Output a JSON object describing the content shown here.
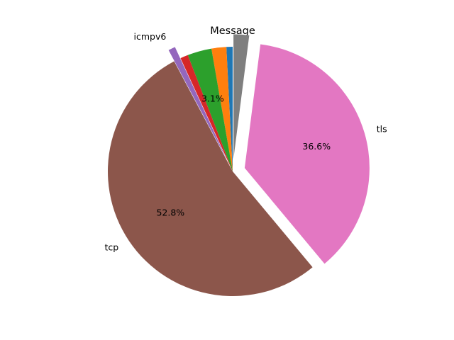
{
  "chart_data": {
    "type": "pie",
    "title": "Message",
    "start_angle_deg": 90,
    "counterclockwise": true,
    "slices": [
      {
        "label": "",
        "value": 0.8,
        "color": "#1f77b4",
        "explode": 0,
        "pct_text": ""
      },
      {
        "label": "",
        "value": 1.9,
        "color": "#ff7f0e",
        "explode": 0,
        "pct_text": ""
      },
      {
        "label": "",
        "value": 3.1,
        "color": "#2ca02c",
        "explode": 0,
        "pct_text": "3.1%"
      },
      {
        "label": "",
        "value": 1.0,
        "color": "#d62728",
        "explode": 0,
        "pct_text": ""
      },
      {
        "label": "icmpv6",
        "value": 0.9,
        "color": "#9467bd",
        "explode": 0.1,
        "pct_text": ""
      },
      {
        "label": "tcp",
        "value": 52.8,
        "color": "#8c564b",
        "explode": 0,
        "pct_text": "52.8%"
      },
      {
        "label": "tls",
        "value": 36.6,
        "color": "#e377c2",
        "explode": 0.1,
        "pct_text": "36.6%"
      },
      {
        "label": "",
        "value": 2.0,
        "color": "#7f7f7f",
        "explode": 0.1,
        "pct_text": ""
      }
    ]
  }
}
